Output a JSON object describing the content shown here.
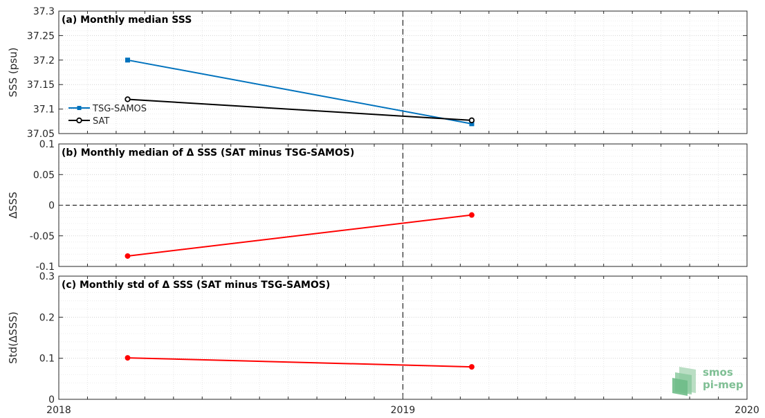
{
  "chart_data": [
    {
      "type": "line",
      "title": "(a) Monthly median SSS",
      "ylabel": "SSS (psu)",
      "xlim": [
        2018,
        2020
      ],
      "ylim": [
        37.05,
        37.3
      ],
      "yticks": [
        "37.05",
        "37.1",
        "37.15",
        "37.2",
        "37.25",
        "37.3"
      ],
      "grid": true,
      "legend": "left-bottom",
      "series": [
        {
          "name": "TSG-SAMOS",
          "color": "#0072bd",
          "marker": "square",
          "x": [
            2018.2,
            2019.2
          ],
          "y": [
            37.2,
            37.07
          ]
        },
        {
          "name": "SAT",
          "color": "#000000",
          "marker": "circle",
          "x": [
            2018.2,
            2019.2
          ],
          "y": [
            37.12,
            37.077
          ]
        }
      ]
    },
    {
      "type": "line",
      "title": "(b) Monthly median of Δ SSS (SAT minus TSG-SAMOS)",
      "ylabel": "ΔSSS",
      "xlim": [
        2018,
        2020
      ],
      "ylim": [
        -0.1,
        0.1
      ],
      "yticks": [
        "-0.1",
        "-0.05",
        "0",
        "0.05",
        "0.1"
      ],
      "grid": true,
      "zero_line": true,
      "series": [
        {
          "color": "#ff0000",
          "marker": "circle",
          "x": [
            2018.2,
            2019.2
          ],
          "y": [
            -0.083,
            -0.016
          ]
        }
      ]
    },
    {
      "type": "line",
      "title": "(c) Monthly std of Δ SSS (SAT minus TSG-SAMOS)",
      "ylabel": "Std(ΔSSS)",
      "xlim": [
        2018,
        2020
      ],
      "ylim": [
        0,
        0.3
      ],
      "yticks": [
        "0",
        "0.1",
        "0.2",
        "0.3"
      ],
      "grid": true,
      "series": [
        {
          "color": "#ff0000",
          "marker": "circle",
          "x": [
            2018.2,
            2019.2
          ],
          "y": [
            0.101,
            0.079
          ]
        }
      ]
    }
  ],
  "x_tick_labels": [
    "2018",
    "2019",
    "2020"
  ],
  "vertical_marker_x": 2019,
  "logo": {
    "line1": "smos",
    "line2": "pi-mep"
  }
}
